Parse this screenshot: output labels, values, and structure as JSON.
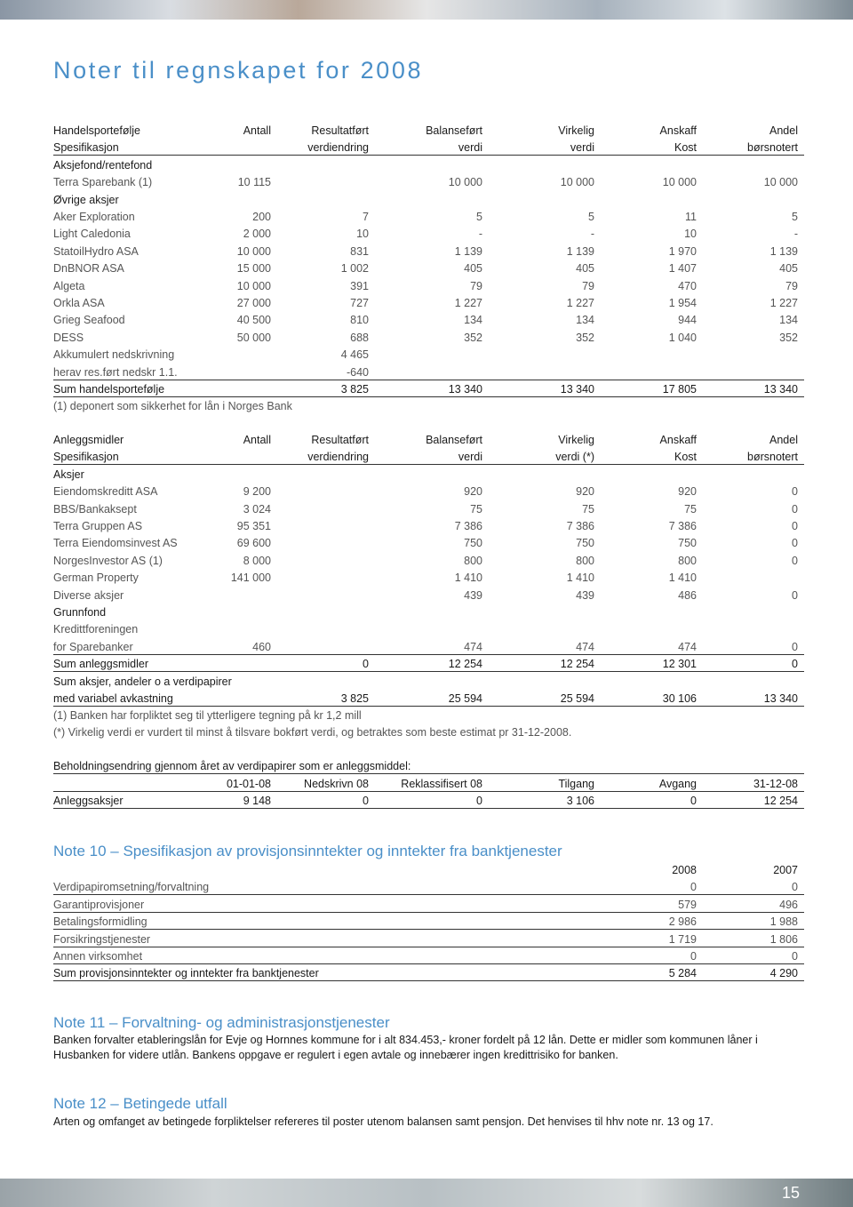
{
  "title": "Noter til regnskapet for 2008",
  "tables": [
    {
      "rows": [
        [
          "Handelsportefølje",
          "Antall",
          "Resultatført",
          "Balanseført",
          "Virkelig",
          "Anskaff",
          "Andel"
        ],
        [
          "Spesifikasjon",
          null,
          "verdiendring",
          "verdi",
          "verdi",
          "Kost",
          "børsnotert"
        ],
        [
          "Aksjefond/rentefond"
        ],
        [
          "Terra Sparebank (1)",
          "10 115",
          null,
          "10 000",
          "10 000",
          "10 000",
          "10 000"
        ],
        [
          "Øvrige aksjer"
        ],
        [
          "Aker Exploration",
          "200",
          "7",
          "5",
          "5",
          "11",
          "5"
        ],
        [
          "Light Caledonia",
          "2 000",
          "10",
          "-",
          "-",
          "10",
          "-"
        ],
        [
          "StatoilHydro ASA",
          "10 000",
          "831",
          "1 139",
          "1 139",
          "1 970",
          "1 139"
        ],
        [
          "DnBNOR ASA",
          "15 000",
          "1 002",
          "405",
          "405",
          "1 407",
          "405"
        ],
        [
          "Algeta",
          "10 000",
          "391",
          "79",
          "79",
          "470",
          "79"
        ],
        [
          "Orkla ASA",
          "27 000",
          "727",
          "1 227",
          "1 227",
          "1 954",
          "1 227"
        ],
        [
          "Grieg Seafood",
          "40 500",
          "810",
          "134",
          "134",
          "944",
          "134"
        ],
        [
          "DESS",
          "50 000",
          "688",
          "352",
          "352",
          "1 040",
          "352"
        ],
        [
          "Akkumulert nedskrivning",
          null,
          "4 465"
        ],
        [
          "herav res.ført nedskr 1.1.",
          null,
          "-640"
        ],
        [
          "Sum handelsportefølje",
          null,
          "3 825",
          "13 340",
          "13 340",
          "17 805",
          "13 340"
        ]
      ],
      "notes": [
        "(1) deponert som sikkerhet for lån i Norges Bank"
      ]
    },
    {
      "rows": [
        [
          "Anleggsmidler",
          "Antall",
          "Resultatført",
          "Balanseført",
          "Virkelig",
          "Anskaff",
          "Andel"
        ],
        [
          "Spesifikasjon",
          null,
          "verdiendring",
          "verdi",
          "verdi (*)",
          "Kost",
          "børsnotert"
        ],
        [
          "Aksjer"
        ],
        [
          "Eiendomskreditt ASA",
          "9 200",
          null,
          "920",
          "920",
          "920",
          "0"
        ],
        [
          "BBS/Bankaksept",
          "3 024",
          null,
          "75",
          "75",
          "75",
          "0"
        ],
        [
          "Terra Gruppen AS",
          "95 351",
          null,
          "7 386",
          "7 386",
          "7 386",
          "0"
        ],
        [
          "Terra Eiendomsinvest AS",
          "69 600",
          null,
          "750",
          "750",
          "750",
          "0"
        ],
        [
          "NorgesInvestor AS (1)",
          "8 000",
          null,
          "800",
          "800",
          "800",
          "0"
        ],
        [
          "German Property",
          "141 000",
          null,
          "1 410",
          "1 410",
          "1 410"
        ],
        [
          "Diverse aksjer",
          null,
          null,
          "439",
          "439",
          "486",
          "0"
        ],
        [
          "Grunnfond"
        ],
        [
          "Kredittforeningen"
        ],
        [
          "for Sparebanker",
          "460",
          null,
          "474",
          "474",
          "474",
          "0"
        ],
        [
          "Sum anleggsmidler",
          null,
          "0",
          "12 254",
          "12 254",
          "12 301",
          "0"
        ],
        [
          "Sum aksjer, andeler o a verdipapirer"
        ],
        [
          "med variabel avkastning",
          null,
          "3 825",
          "25 594",
          "25 594",
          "30 106",
          "13 340"
        ]
      ],
      "notes": [
        "(1) Banken har forpliktet seg til ytterligere tegning på kr 1,2 mill",
        "(*) Virkelig verdi er vurdert til minst å tilsvare bokført verdi, og betraktes som beste estimat pr 31-12-2008."
      ]
    }
  ],
  "holdings": {
    "title": "Beholdningsendring gjennom året av verdipapirer som er anleggsmiddel:",
    "rows": [
      [
        null,
        "01-01-08",
        "Nedskrivn 08",
        "Reklassifisert 08",
        "Tilgang",
        "Avgang",
        "31-12-08"
      ],
      [
        "Anleggsaksjer",
        "9 148",
        "0",
        "0",
        "3 106",
        "0",
        "12 254"
      ]
    ]
  },
  "note10": {
    "heading": "Note 10 – Spesifikasjon av provisjonsinntekter og inntekter fra banktjenester",
    "rows": [
      [
        null,
        "2008",
        "2007"
      ],
      [
        "Verdipapiromsetning/forvaltning",
        "0",
        "0"
      ],
      [
        "Garantiprovisjoner",
        "579",
        "496"
      ],
      [
        "Betalingsformidling",
        "2 986",
        "1 988"
      ],
      [
        "Forsikringstjenester",
        "1 719",
        "1 806"
      ],
      [
        "Annen virksomhet",
        "0",
        "0"
      ],
      [
        "Sum provisjonsinntekter og inntekter fra banktjenester",
        "5 284",
        "4 290"
      ]
    ]
  },
  "note11": {
    "heading": "Note 11 – Forvaltning- og administrasjonstjenester",
    "text": [
      "Banken forvalter etableringslån for Evje og Hornnes kommune for i alt  834.453,- kroner fordelt på 12 lån. Dette er midler som kommunen låner i",
      "Husbanken for videre utlån. Bankens oppgave er regulert i egen avtale og innebærer ingen kredittrisiko for banken."
    ]
  },
  "note12": {
    "heading": "Note 12 – Betingede utfall",
    "text": [
      "Arten og omfanget av betingede forpliktelser refereres til poster utenom balansen samt pensjon. Det henvises til hhv note nr. 13 og 17."
    ]
  },
  "page_number": "15"
}
